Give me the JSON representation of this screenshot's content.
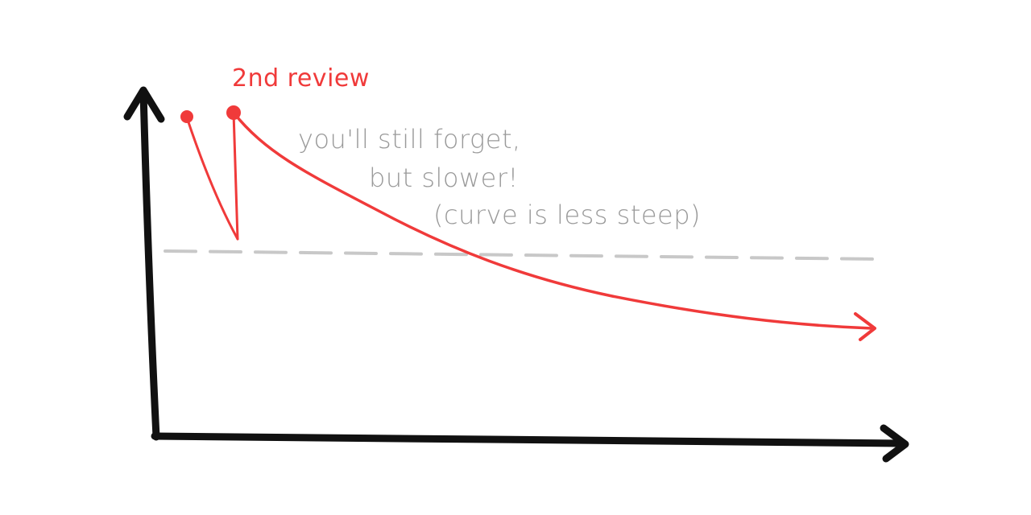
{
  "annotations": {
    "review_label": "2nd review",
    "note_lines": [
      "you'll still forget,",
      "but slower!",
      "(curve is less steep)"
    ]
  },
  "colors": {
    "axis": "#111111",
    "curve": "#f03a3a",
    "threshold": "#c8c8c8",
    "note_text": "#9a9a9a"
  }
}
